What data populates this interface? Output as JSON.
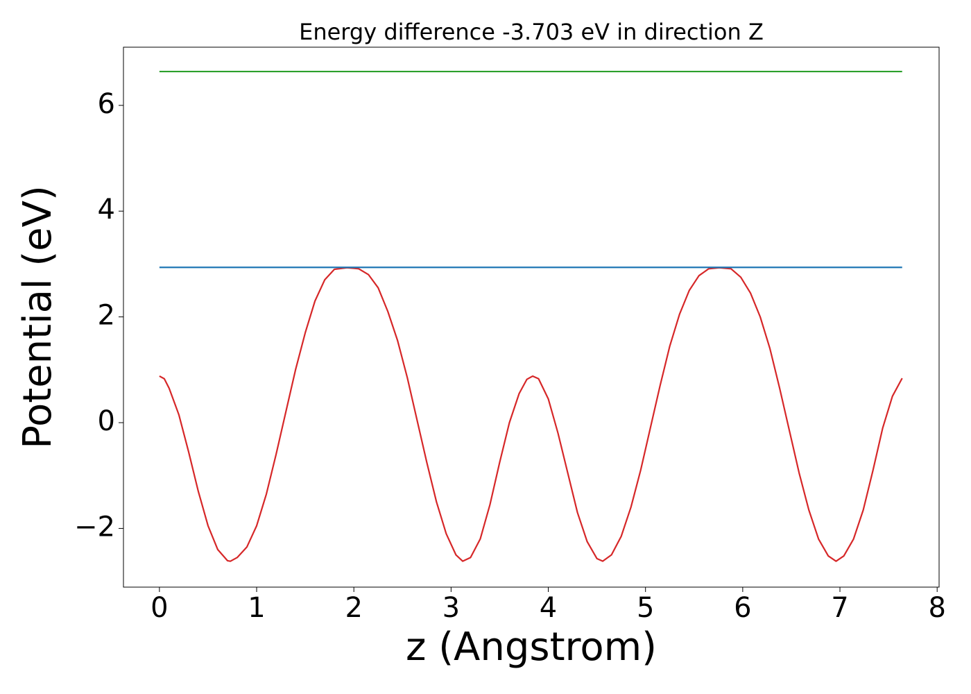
{
  "chart_data": {
    "type": "line",
    "title": "Energy difference -3.703 eV in direction Z",
    "xlabel": "z (Angstrom)",
    "ylabel": "Potential (eV)",
    "xlim": [
      -0.37,
      8.02
    ],
    "ylim": [
      -3.11,
      7.1
    ],
    "xticks": [
      0,
      1,
      2,
      3,
      4,
      5,
      6,
      7,
      8
    ],
    "yticks": [
      {
        "value": -2,
        "label": "−2"
      },
      0,
      2,
      4,
      6
    ],
    "series": [
      {
        "color": "#d62728",
        "x": [
          0,
          0.05,
          0.1,
          0.2,
          0.3,
          0.4,
          0.5,
          0.6,
          0.7,
          0.73,
          0.8,
          0.9,
          1.0,
          1.1,
          1.2,
          1.3,
          1.4,
          1.5,
          1.6,
          1.7,
          1.8,
          1.93,
          2.05,
          2.15,
          2.25,
          2.35,
          2.45,
          2.55,
          2.65,
          2.75,
          2.85,
          2.95,
          3.05,
          3.12,
          3.2,
          3.3,
          3.4,
          3.5,
          3.6,
          3.7,
          3.78,
          3.84,
          3.9,
          4.0,
          4.1,
          4.2,
          4.3,
          4.4,
          4.5,
          4.56,
          4.65,
          4.75,
          4.85,
          4.95,
          5.05,
          5.15,
          5.25,
          5.35,
          5.45,
          5.55,
          5.65,
          5.76,
          5.88,
          5.98,
          6.08,
          6.18,
          6.28,
          6.38,
          6.48,
          6.58,
          6.68,
          6.78,
          6.88,
          6.96,
          7.04,
          7.14,
          7.24,
          7.34,
          7.44,
          7.54,
          7.64
        ],
        "values": [
          0.88,
          0.83,
          0.65,
          0.15,
          -0.55,
          -1.3,
          -1.95,
          -2.4,
          -2.61,
          -2.62,
          -2.55,
          -2.35,
          -1.95,
          -1.35,
          -0.6,
          0.2,
          1.0,
          1.7,
          2.3,
          2.7,
          2.9,
          2.93,
          2.91,
          2.8,
          2.55,
          2.1,
          1.55,
          0.85,
          0.05,
          -0.75,
          -1.5,
          -2.1,
          -2.5,
          -2.62,
          -2.55,
          -2.2,
          -1.55,
          -0.75,
          0.0,
          0.55,
          0.82,
          0.88,
          0.83,
          0.45,
          -0.2,
          -0.95,
          -1.7,
          -2.25,
          -2.57,
          -2.62,
          -2.5,
          -2.15,
          -1.6,
          -0.9,
          -0.1,
          0.7,
          1.45,
          2.05,
          2.5,
          2.78,
          2.91,
          2.93,
          2.91,
          2.75,
          2.45,
          2.0,
          1.4,
          0.65,
          -0.15,
          -0.95,
          -1.65,
          -2.2,
          -2.52,
          -2.62,
          -2.52,
          -2.2,
          -1.65,
          -0.9,
          -0.1,
          0.5,
          0.84
        ]
      },
      {
        "color": "#1f77b4",
        "x": [
          0,
          7.64
        ],
        "values": [
          2.937,
          2.937
        ]
      },
      {
        "color": "#2ca02c",
        "x": [
          0,
          7.64
        ],
        "values": [
          6.64,
          6.64
        ]
      }
    ]
  }
}
